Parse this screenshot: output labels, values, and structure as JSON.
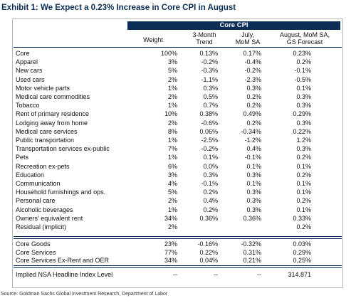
{
  "title": "Exhibit 1: We Expect a 0.23% Increase in Core CPI in August",
  "band_label": "Core CPI",
  "headers": {
    "weight": "Weight",
    "trend_l1": "3-Month",
    "trend_l2": "Trend",
    "july_l1": "July,",
    "july_l2": "MoM SA",
    "aug_l1": "August, MoM SA,",
    "aug_l2": "GS Forecast"
  },
  "rows": [
    {
      "label": "Core",
      "weight": "100%",
      "trend": "0.13%",
      "july": "0.17%",
      "aug": "0.23%"
    },
    {
      "label": "Apparel",
      "weight": "3%",
      "trend": "-0.2%",
      "july": "-0.4%",
      "aug": "0.2%"
    },
    {
      "label": "New cars",
      "weight": "5%",
      "trend": "-0.3%",
      "july": "-0.2%",
      "aug": "-0.1%"
    },
    {
      "label": "Used cars",
      "weight": "2%",
      "trend": "-1.1%",
      "july": "-2.3%",
      "aug": "-0.5%"
    },
    {
      "label": "Motor vehicle parts",
      "weight": "1%",
      "trend": "0.3%",
      "july": "0.3%",
      "aug": "0.1%"
    },
    {
      "label": "Medical care commodities",
      "weight": "2%",
      "trend": "0.5%",
      "july": "0.2%",
      "aug": "0.3%"
    },
    {
      "label": "Tobacco",
      "weight": "1%",
      "trend": "0.7%",
      "july": "0.2%",
      "aug": "0.3%"
    },
    {
      "label": "Rent of primary residence",
      "weight": "10%",
      "trend": "0.38%",
      "july": "0.49%",
      "aug": "0.29%"
    },
    {
      "label": "Lodging away from home",
      "weight": "2%",
      "trend": "-0.6%",
      "july": "0.2%",
      "aug": "0.3%"
    },
    {
      "label": "Medical care services",
      "weight": "8%",
      "trend": "0.06%",
      "july": "-0.34%",
      "aug": "0.22%"
    },
    {
      "label": "Public transportation",
      "weight": "1%",
      "trend": "-2.5%",
      "july": "-1.2%",
      "aug": "1.2%"
    },
    {
      "label": "Transportation services ex-public",
      "weight": "7%",
      "trend": "-0.2%",
      "july": "0.4%",
      "aug": "0.3%"
    },
    {
      "label": "Pets",
      "weight": "1%",
      "trend": "0.1%",
      "july": "-0.1%",
      "aug": "0.2%"
    },
    {
      "label": "Recreation ex-pets",
      "weight": "6%",
      "trend": "0.0%",
      "july": "0.1%",
      "aug": "0.1%"
    },
    {
      "label": "Education",
      "weight": "3%",
      "trend": "0.3%",
      "july": "0.3%",
      "aug": "0.2%"
    },
    {
      "label": "Communication",
      "weight": "4%",
      "trend": "-0.1%",
      "july": "0.1%",
      "aug": "0.1%"
    },
    {
      "label": "Household furnishings and ops.",
      "weight": "5%",
      "trend": "0.2%",
      "july": "0.3%",
      "aug": "0.1%"
    },
    {
      "label": "Personal care",
      "weight": "2%",
      "trend": "0.4%",
      "july": "0.3%",
      "aug": "0.2%"
    },
    {
      "label": "Alcoholic beverages",
      "weight": "1%",
      "trend": "0.2%",
      "july": "0.3%",
      "aug": "0.1%"
    },
    {
      "label": "Owners' equivalent rent",
      "weight": "34%",
      "trend": "0.36%",
      "july": "0.36%",
      "aug": "0.33%"
    },
    {
      "label": "Residual (implicit)",
      "weight": "2%",
      "trend": "",
      "july": "",
      "aug": "0.2%"
    }
  ],
  "summary_rows": [
    {
      "label": "Core Goods",
      "weight": "23%",
      "trend": "-0.16%",
      "july": "-0.32%",
      "aug": "0.03%"
    },
    {
      "label": "Core Services",
      "weight": "77%",
      "trend": "0.22%",
      "july": "0.31%",
      "aug": "0.29%"
    },
    {
      "label": "Core Services Ex-Rent and OER",
      "weight": "34%",
      "trend": "0.04%",
      "july": "0.21%",
      "aug": "0.25%"
    }
  ],
  "implied_row": {
    "label": "Implied NSA Headline Index Level",
    "weight": "--",
    "trend": "--",
    "july": "--",
    "aug": "314.871"
  },
  "source": "Source: Goldman Sachs Global Investment Research, Department of Labor",
  "colors": {
    "navy": "#0b2e57",
    "border": "#b8b8b8"
  }
}
